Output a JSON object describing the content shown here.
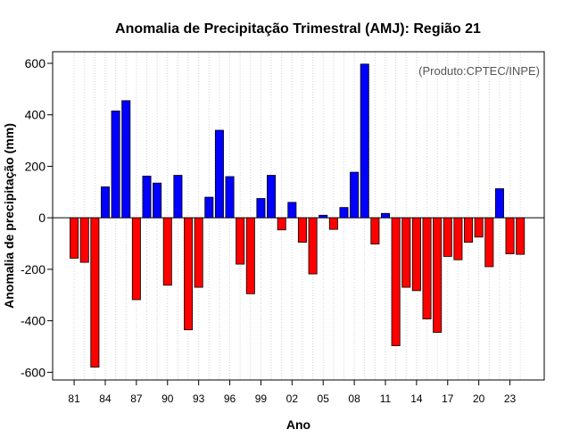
{
  "chart_data": {
    "type": "bar",
    "title": "Anomalia de Precipitação Trimestral (AMJ): Região 21",
    "xlabel": "Ano",
    "ylabel": "Anomalia de precipitação (mm)",
    "source_note": "(Produto:CPTEC/INPE)",
    "ylim": [
      -630,
      645
    ],
    "yticks": [
      -600,
      -400,
      -200,
      0,
      200,
      400,
      600
    ],
    "xtick_labels": [
      "81",
      "84",
      "87",
      "90",
      "93",
      "96",
      "99",
      "02",
      "05",
      "08",
      "11",
      "14",
      "17",
      "20",
      "23"
    ],
    "xtick_every": 3,
    "grid": "vertical dotted",
    "positive_color": "#0000ff",
    "negative_color": "#ff0000",
    "categories": [
      "1981",
      "1982",
      "1983",
      "1984",
      "1985",
      "1986",
      "1987",
      "1988",
      "1989",
      "1990",
      "1991",
      "1992",
      "1993",
      "1994",
      "1995",
      "1996",
      "1997",
      "1998",
      "1999",
      "2000",
      "2001",
      "2002",
      "2003",
      "2004",
      "2005",
      "2006",
      "2007",
      "2008",
      "2009",
      "2010",
      "2011",
      "2012",
      "2013",
      "2014",
      "2015",
      "2016",
      "2017",
      "2018",
      "2019",
      "2020",
      "2021",
      "2022",
      "2023",
      "2024"
    ],
    "values": [
      -157,
      -173,
      -580,
      120,
      415,
      455,
      -318,
      162,
      135,
      -262,
      165,
      -435,
      -270,
      80,
      340,
      160,
      -180,
      -295,
      75,
      165,
      -47,
      60,
      -95,
      -218,
      10,
      -45,
      40,
      177,
      597,
      -102,
      17,
      -497,
      -270,
      -283,
      -393,
      -445,
      -150,
      -163,
      -95,
      -75,
      -190,
      113,
      -140,
      -142
    ]
  }
}
